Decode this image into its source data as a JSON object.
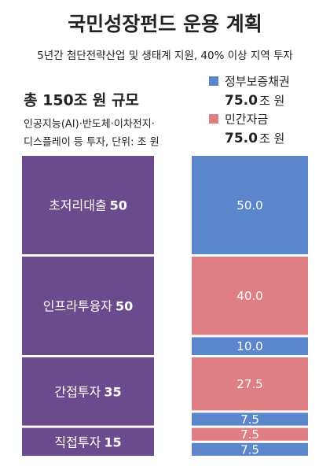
{
  "chart_data": {
    "type": "stacked_bar",
    "title": "국민성장펀드 운용 계획",
    "subtitle": "5년간 첨단전략산업 및 생태계 지원, 40% 이상 지역 투자",
    "total_label": "총 150조 원 규모",
    "note": [
      "인공지능(AI)·반도체·이차전지·",
      "디스플레이 등 투자, 단위: 조 원"
    ],
    "categories": [
      "초저리대출",
      "인프라투융자",
      "간접투자",
      "직접투자"
    ],
    "totals": [
      50,
      50,
      35,
      15
    ],
    "total_color": "#6b4a8e",
    "series": [
      {
        "name": "정부보증채권",
        "color": "#5b86cc",
        "total": 75,
        "total_label": "75.0",
        "unit": "조 원",
        "values": [
          50,
          10,
          7.5,
          7.5
        ],
        "value_labels": [
          "50.0",
          "10.0",
          "7.5",
          "7.5"
        ]
      },
      {
        "name": "민간자금",
        "color": "#e07f83",
        "total": 75,
        "total_label": "75.0",
        "unit": "조 원",
        "values": [
          null,
          40,
          27.5,
          7.5
        ],
        "value_labels": [
          null,
          "40.0",
          "27.5",
          "7.5"
        ]
      }
    ]
  }
}
